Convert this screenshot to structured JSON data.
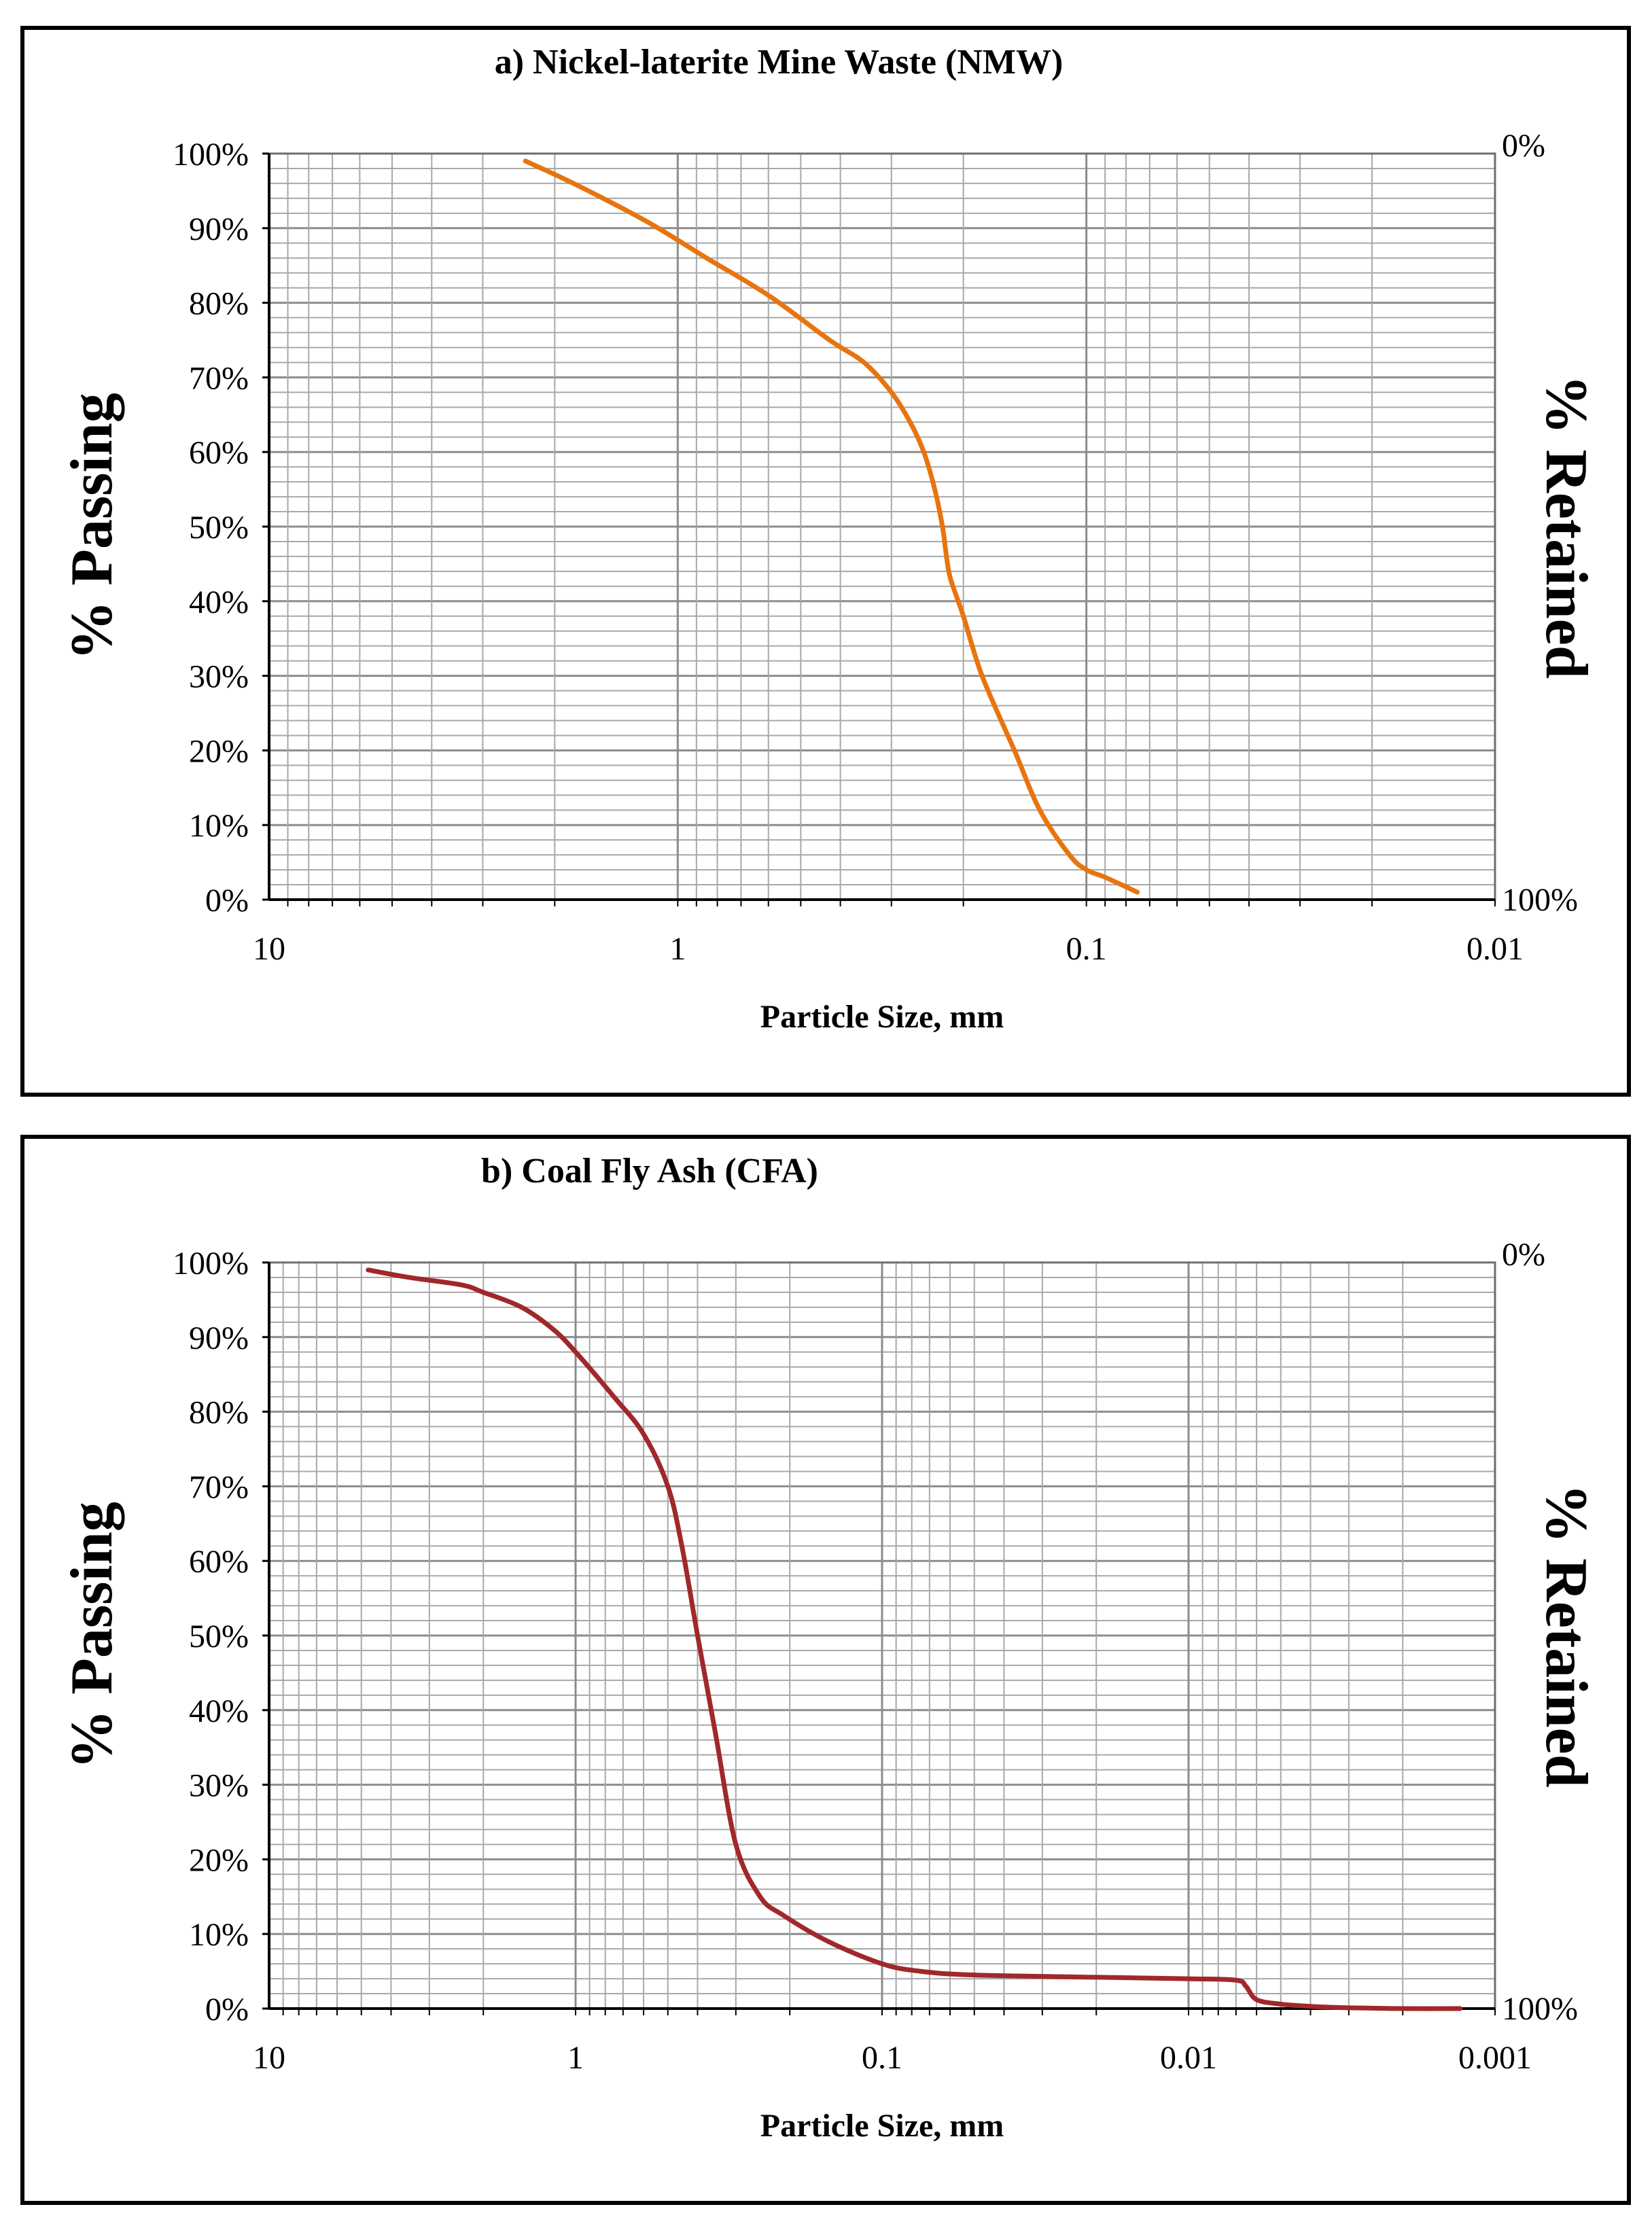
{
  "chart_data": [
    {
      "type": "line",
      "title": "a) Nickel-laterite Mine Waste (NMW)",
      "xlabel": "Particle Size, mm",
      "ylabel": "% Passing",
      "y2label": "% Retained",
      "x_scale": "log",
      "x_reversed": true,
      "xlim": [
        10,
        0.01
      ],
      "ylim": [
        0,
        100
      ],
      "x_ticks": [
        10,
        1,
        0.1,
        0.01
      ],
      "x_tick_labels": [
        "10",
        "1",
        "0.1",
        "0.01"
      ],
      "y_tick_labels": [
        "0%",
        "10%",
        "20%",
        "30%",
        "40%",
        "50%",
        "60%",
        "70%",
        "80%",
        "90%",
        "100%"
      ],
      "y2_tick_labels": [
        "0%",
        "100%"
      ],
      "grid": true,
      "color": "#E8740F",
      "series": [
        {
          "name": "NMW",
          "x": [
            2.36,
            1.8,
            1.2,
            0.85,
            0.6,
            0.425,
            0.35,
            0.3,
            0.27,
            0.25,
            0.235,
            0.225,
            0.22,
            0.215,
            0.2,
            0.18,
            0.15,
            0.13,
            0.11,
            0.1,
            0.09,
            0.075
          ],
          "y": [
            99,
            96,
            91,
            86,
            81,
            75,
            72,
            68,
            64,
            60,
            55,
            50,
            46,
            43,
            38,
            30,
            20,
            12,
            6,
            4,
            3,
            1
          ]
        }
      ]
    },
    {
      "type": "line",
      "title": "b) Coal Fly Ash (CFA)",
      "xlabel": "Particle Size, mm",
      "ylabel": "% Passing",
      "y2label": "% Retained",
      "x_scale": "log",
      "x_reversed": true,
      "xlim": [
        10,
        0.001
      ],
      "ylim": [
        0,
        100
      ],
      "x_ticks": [
        10,
        1,
        0.1,
        0.01,
        0.001
      ],
      "x_tick_labels": [
        "10",
        "1",
        "0.1",
        "0.01",
        "0.001"
      ],
      "y_tick_labels": [
        "0%",
        "10%",
        "20%",
        "30%",
        "40%",
        "50%",
        "60%",
        "70%",
        "80%",
        "90%",
        "100%"
      ],
      "y2_tick_labels": [
        "0%",
        "100%"
      ],
      "grid": true,
      "color": "#A0282B",
      "series": [
        {
          "name": "CFA",
          "x": [
            4.75,
            3.5,
            2.36,
            2.0,
            1.5,
            1.18,
            1.0,
            0.75,
            0.6,
            0.5,
            0.45,
            0.4,
            0.35,
            0.3,
            0.25,
            0.21,
            0.15,
            0.1,
            0.075,
            0.05,
            0.02,
            0.01,
            0.007,
            0.0065,
            0.006,
            0.005,
            0.004,
            0.003,
            0.002,
            0.0013
          ],
          "y": [
            99,
            98,
            97,
            96,
            94,
            91,
            88,
            82,
            77,
            70,
            62,
            50,
            37,
            22,
            15,
            12.5,
            9,
            6,
            5,
            4.5,
            4.2,
            4.0,
            3.8,
            3.0,
            1.2,
            0.6,
            0.3,
            0.1,
            0,
            0
          ]
        }
      ]
    }
  ]
}
